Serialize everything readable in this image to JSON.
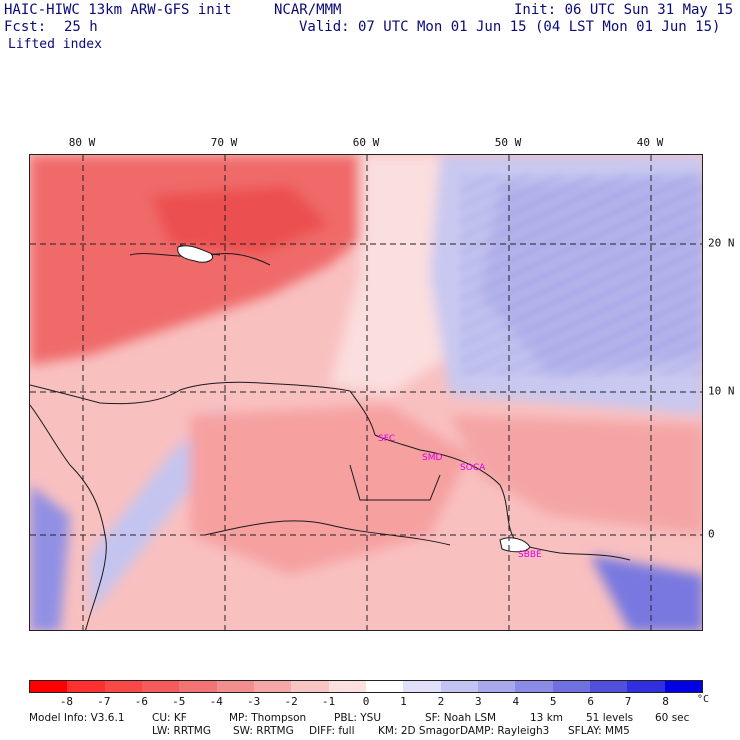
{
  "header": {
    "model_title": "HAIC-HIWC 13km ARW-GFS init",
    "org": "NCAR/MMM",
    "init": "Init: 06 UTC Sun 31 May 15",
    "fcst_label": "Fcst:",
    "fcst_value": "25 h",
    "valid": "Valid: 07 UTC Mon 01 Jun 15 (04 LST Mon 01 Jun 15)",
    "field": "Lifted index"
  },
  "map": {
    "lon_labels": [
      "80 W",
      "70 W",
      "60 W",
      "50 W",
      "40 W"
    ],
    "lat_labels": [
      "20 N",
      "10 N",
      "0"
    ],
    "places": [
      "SFC",
      "SMD",
      "SOCA",
      "SBBE"
    ],
    "background_colors": {
      "strong_negative": "#f05a5a",
      "moderate_negative": "#f58a8a",
      "weak_negative": "#f9b8b8",
      "near_zero": "#fbe2e2",
      "weak_positive": "#dcdcf5",
      "moderate_positive": "#b3b3ec",
      "strong_positive": "#8080e0"
    }
  },
  "colorbar": {
    "labels": [
      "-8",
      "-7",
      "-6",
      "-5",
      "-4",
      "-3",
      "-2",
      "-1",
      "0",
      "1",
      "2",
      "3",
      "4",
      "5",
      "6",
      "7",
      "8"
    ],
    "unit": "°C",
    "colors": [
      "#ff0000",
      "#ff3030",
      "#f84848",
      "#f45c5c",
      "#f27474",
      "#f38e8e",
      "#f6a8a8",
      "#f9c4c4",
      "#fce0e0",
      "#ffffff",
      "#e0e0f8",
      "#c4c4f2",
      "#a8a8ec",
      "#8c8ce6",
      "#7070e0",
      "#5050dc",
      "#3030e0",
      "#0000e6"
    ]
  },
  "footer": {
    "line1": [
      "Model Info: V3.6.1",
      "CU: KF",
      "MP: Thompson",
      "PBL: YSU",
      "SF: Noah LSM",
      "13 km",
      "51 levels",
      "60 sec"
    ],
    "line2": [
      "LW: RRTMG",
      "SW: RRTMG",
      "DIFF: full",
      "KM: 2D Smagor",
      "DAMP: Rayleigh3",
      "SFLAY: MM5"
    ]
  }
}
